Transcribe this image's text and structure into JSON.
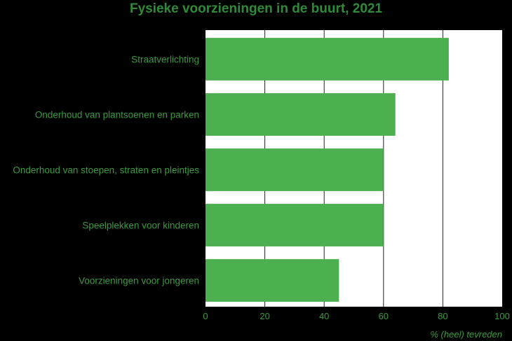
{
  "chart_data": {
    "type": "bar",
    "orientation": "horizontal",
    "title": "Fysieke voorzieningen in de buurt, 2021",
    "categories": [
      "Straatverlichting",
      "Onderhoud van plantsoenen en parken",
      "Onderhoud van stoepen, straten en pleintjes",
      "Speelplekken voor kinderen",
      "Voorzieningen voor jongeren"
    ],
    "values": [
      82,
      64,
      60,
      60,
      45
    ],
    "xlabel": "% (heel) tevreden",
    "ylabel": "",
    "xlim": [
      0,
      100
    ],
    "xticks": [
      "0",
      "20",
      "40",
      "60",
      "80",
      "100"
    ],
    "grid": true,
    "colors": {
      "bar": "#4caf50",
      "text": "#3a9a3f",
      "background": "#000000",
      "plot_background": "#ffffff",
      "grid": "#222222"
    }
  }
}
